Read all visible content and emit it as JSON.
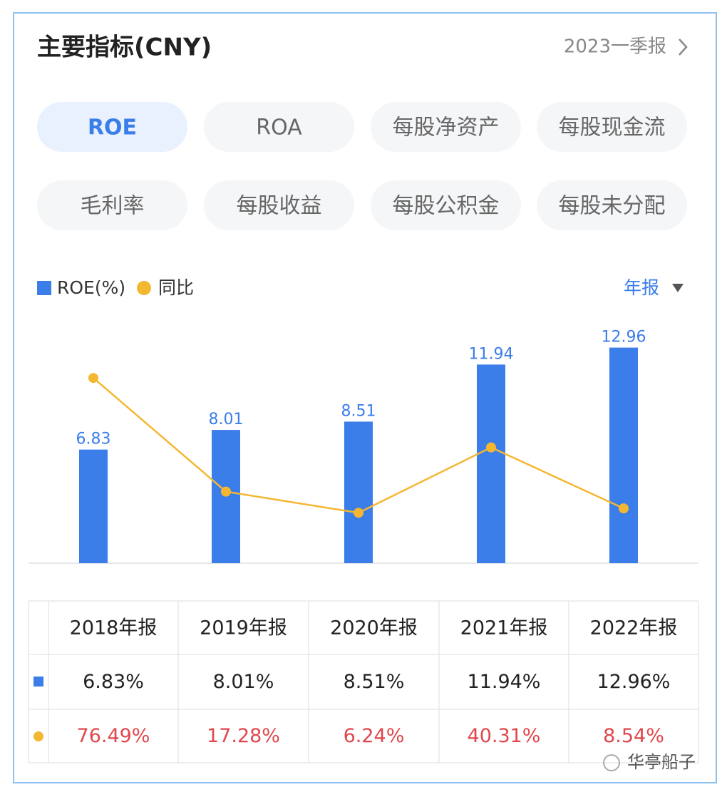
{
  "header": {
    "title": "主要指标(CNY)",
    "period": "2023一季报"
  },
  "tabs": [
    "ROE",
    "ROA",
    "每股净资产",
    "每股现金流",
    "毛利率",
    "每股收益",
    "每股公积金",
    "每股未分配"
  ],
  "active_tab": 0,
  "period_selector": "年报",
  "chart_data": {
    "type": "bar",
    "categories": [
      "2018年报",
      "2019年报",
      "2020年报",
      "2021年报",
      "2022年报"
    ],
    "series": [
      {
        "name": "ROE(%)",
        "type": "bar",
        "color": "#3b7de9",
        "values": [
          6.83,
          8.01,
          8.51,
          11.94,
          12.96
        ]
      },
      {
        "name": "同比",
        "type": "line",
        "axis": "y2",
        "color": "#f5b731",
        "values": [
          76.49,
          17.28,
          6.24,
          40.31,
          8.54
        ]
      }
    ],
    "ylim": [
      0,
      15
    ],
    "y2lim": [
      -20,
      110
    ]
  },
  "table": {
    "rows": [
      [
        "6.83%",
        "8.01%",
        "8.51%",
        "11.94%",
        "12.96%"
      ],
      [
        "76.49%",
        "17.28%",
        "6.24%",
        "40.31%",
        "8.54%"
      ]
    ]
  },
  "watermark": "华亭船子"
}
